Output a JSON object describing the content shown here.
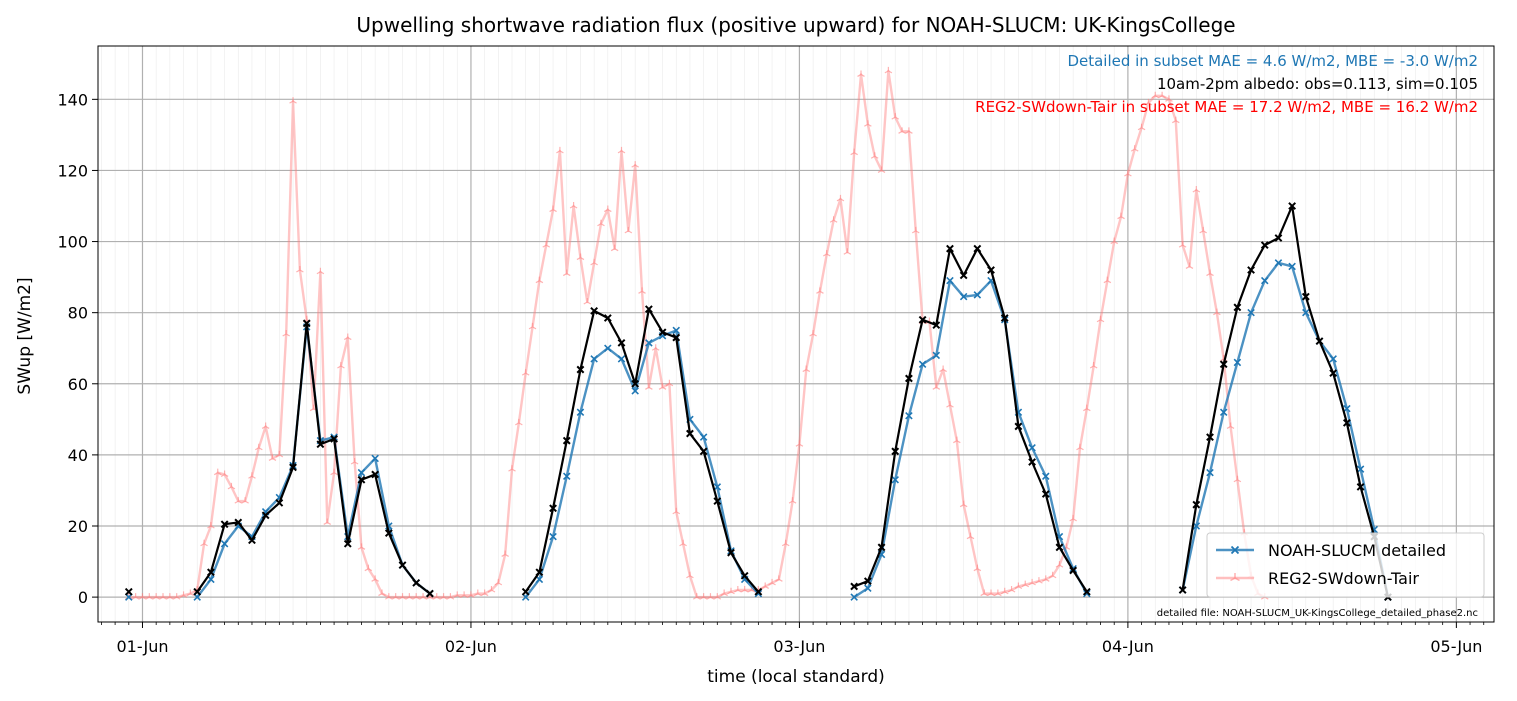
{
  "chart_data": {
    "type": "line",
    "title": "Upwelling shortwave radiation flux (positive upward) for NOAH-SLUCM: UK-KingsCollege",
    "xlabel": "time (local standard)",
    "ylabel": "SWup [W/m2]",
    "x_unit": "hours since 01-Jun 00:00",
    "xlim": [
      -3.25,
      98.75
    ],
    "ylim": [
      -7,
      155
    ],
    "x_ticks": [
      0,
      24,
      48,
      72,
      96
    ],
    "x_tick_labels": [
      "01-Jun",
      "02-Jun",
      "03-Jun",
      "04-Jun",
      "05-Jun"
    ],
    "y_ticks": [
      0,
      20,
      40,
      60,
      80,
      100,
      120,
      140
    ],
    "y_tick_labels": [
      "0",
      "20",
      "40",
      "60",
      "80",
      "100",
      "120",
      "140"
    ],
    "grid": true,
    "legend_position": "lower right",
    "annotations": [
      {
        "text": "Detailed in subset MAE = 4.6 W/m2, MBE = -3.0 W/m2",
        "color": "#1f77b4"
      },
      {
        "text": "10am-2pm albedo: obs=0.113, sim=0.105",
        "color": "#000000"
      },
      {
        "text": "REG2-SWdown-Tair in subset MAE = 17.2 W/m2, MBE = 16.2 W/m2",
        "color": "#ff0000"
      }
    ],
    "footnote": "detailed file: NOAH-SLUCM_UK-KingsCollege_detailed_phase2.nc",
    "series": [
      {
        "name": "NOAH-SLUCM detailed",
        "color": "#1f77b4",
        "in_legend": true,
        "points": [
          [
            -1,
            0
          ],
          [
            4,
            0
          ],
          [
            5,
            5
          ],
          [
            6,
            15
          ],
          [
            7,
            20
          ],
          [
            8,
            17
          ],
          [
            9,
            24
          ],
          [
            10,
            28
          ],
          [
            11,
            37
          ],
          [
            12,
            76
          ],
          [
            13,
            44
          ],
          [
            14,
            45
          ],
          [
            15,
            17
          ],
          [
            16,
            35
          ],
          [
            17,
            39
          ],
          [
            18,
            20
          ],
          [
            19,
            9
          ],
          [
            20,
            4
          ],
          [
            21,
            1
          ],
          [
            28,
            0
          ],
          [
            29,
            5
          ],
          [
            30,
            17
          ],
          [
            31,
            34
          ],
          [
            32,
            52
          ],
          [
            33,
            67
          ],
          [
            34,
            70
          ],
          [
            35,
            67
          ],
          [
            36,
            58
          ],
          [
            37,
            71.5
          ],
          [
            38,
            73.5
          ],
          [
            39,
            75
          ],
          [
            40,
            50
          ],
          [
            41,
            45
          ],
          [
            42,
            31
          ],
          [
            43,
            13
          ],
          [
            44,
            5
          ],
          [
            45,
            1
          ],
          [
            52,
            0
          ],
          [
            53,
            2.5
          ],
          [
            54,
            12
          ],
          [
            55,
            33
          ],
          [
            56,
            51
          ],
          [
            57,
            65.5
          ],
          [
            58,
            68
          ],
          [
            59,
            89
          ],
          [
            60,
            84.5
          ],
          [
            61,
            85
          ],
          [
            62,
            89
          ],
          [
            63,
            78
          ],
          [
            64,
            52
          ],
          [
            65,
            42
          ],
          [
            66,
            34
          ],
          [
            67,
            17
          ],
          [
            68,
            8
          ],
          [
            69,
            1
          ],
          [
            76,
            2
          ],
          [
            77,
            20
          ],
          [
            78,
            35
          ],
          [
            79,
            52
          ],
          [
            80,
            66
          ],
          [
            81,
            80
          ],
          [
            82,
            89
          ],
          [
            83,
            94
          ],
          [
            84,
            93
          ],
          [
            85,
            80
          ],
          [
            86,
            72
          ],
          [
            87,
            67
          ],
          [
            88,
            53
          ],
          [
            89,
            36
          ],
          [
            90,
            19
          ],
          [
            91,
            0
          ]
        ]
      },
      {
        "name": "REG2-SWdown-Tair",
        "color": "#ff7f7f",
        "in_legend": true,
        "points": [
          [
            -1,
            0
          ],
          [
            -0.5,
            0
          ],
          [
            0,
            0
          ],
          [
            0.5,
            0
          ],
          [
            1,
            0
          ],
          [
            1.5,
            0
          ],
          [
            2,
            0
          ],
          [
            2.5,
            0
          ],
          [
            3,
            0.5
          ],
          [
            3.5,
            1
          ],
          [
            4,
            2
          ],
          [
            4.5,
            15
          ],
          [
            5,
            20
          ],
          [
            5.5,
            35
          ],
          [
            6,
            34.5
          ],
          [
            6.5,
            31
          ],
          [
            7,
            27
          ],
          [
            7.5,
            27
          ],
          [
            8,
            34
          ],
          [
            8.5,
            42
          ],
          [
            9,
            48
          ],
          [
            9.5,
            39
          ],
          [
            10,
            40
          ],
          [
            10.5,
            74
          ],
          [
            11,
            139.5
          ],
          [
            11.5,
            92
          ],
          [
            12,
            78
          ],
          [
            12.5,
            53
          ],
          [
            13,
            91.5
          ],
          [
            13.5,
            21
          ],
          [
            14,
            35
          ],
          [
            14.5,
            65
          ],
          [
            15,
            73
          ],
          [
            15.5,
            38
          ],
          [
            16,
            14
          ],
          [
            16.5,
            8
          ],
          [
            17,
            5
          ],
          [
            17.5,
            1
          ],
          [
            18,
            0
          ],
          [
            18.5,
            0
          ],
          [
            19,
            0
          ],
          [
            19.5,
            0
          ],
          [
            20,
            0
          ],
          [
            20.5,
            0
          ],
          [
            21,
            0
          ],
          [
            21.5,
            0
          ],
          [
            22,
            0
          ],
          [
            22.5,
            0
          ],
          [
            23,
            0.5
          ],
          [
            23.5,
            0.5
          ],
          [
            24,
            0.5
          ],
          [
            24.5,
            1
          ],
          [
            25,
            1
          ],
          [
            25.5,
            2
          ],
          [
            26,
            4
          ],
          [
            26.5,
            12
          ],
          [
            27,
            36
          ],
          [
            27.5,
            49
          ],
          [
            28,
            63
          ],
          [
            28.5,
            76
          ],
          [
            29,
            89
          ],
          [
            29.5,
            99
          ],
          [
            30,
            109
          ],
          [
            30.5,
            125.5
          ],
          [
            31,
            91
          ],
          [
            31.5,
            110
          ],
          [
            32,
            95.5
          ],
          [
            32.5,
            83
          ],
          [
            33,
            94
          ],
          [
            33.5,
            105
          ],
          [
            34,
            109
          ],
          [
            34.5,
            98
          ],
          [
            35,
            125.5
          ],
          [
            35.5,
            103
          ],
          [
            36,
            121.5
          ],
          [
            36.5,
            86
          ],
          [
            37,
            59
          ],
          [
            37.5,
            70
          ],
          [
            38,
            59
          ],
          [
            38.5,
            60
          ],
          [
            39,
            24
          ],
          [
            39.5,
            15
          ],
          [
            40,
            6
          ],
          [
            40.5,
            0
          ],
          [
            41,
            0
          ],
          [
            41.5,
            0
          ],
          [
            42,
            0
          ],
          [
            42.5,
            1
          ],
          [
            43,
            1.5
          ],
          [
            43.5,
            2
          ],
          [
            44,
            2
          ],
          [
            44.5,
            2
          ],
          [
            45,
            2
          ],
          [
            45.5,
            3
          ],
          [
            46,
            4
          ],
          [
            46.5,
            5
          ],
          [
            47,
            15
          ],
          [
            47.5,
            27
          ],
          [
            48,
            43
          ],
          [
            48.5,
            64
          ],
          [
            49,
            74
          ],
          [
            49.5,
            86
          ],
          [
            50,
            96.5
          ],
          [
            50.5,
            106
          ],
          [
            51,
            112
          ],
          [
            51.5,
            97
          ],
          [
            52,
            125
          ],
          [
            52.5,
            147
          ],
          [
            53,
            133
          ],
          [
            53.5,
            124
          ],
          [
            54,
            120
          ],
          [
            54.5,
            148
          ],
          [
            55,
            135
          ],
          [
            55.5,
            131
          ],
          [
            56,
            131
          ],
          [
            56.5,
            103
          ],
          [
            57,
            77.5
          ],
          [
            57.5,
            77.5
          ],
          [
            58,
            59
          ],
          [
            58.5,
            64
          ],
          [
            59,
            54
          ],
          [
            59.5,
            44
          ],
          [
            60,
            26
          ],
          [
            60.5,
            17
          ],
          [
            61,
            8
          ],
          [
            61.5,
            1
          ],
          [
            62,
            1
          ],
          [
            62.5,
            1
          ],
          [
            63,
            1.5
          ],
          [
            63.5,
            2
          ],
          [
            64,
            3
          ],
          [
            64.5,
            3.5
          ],
          [
            65,
            4
          ],
          [
            65.5,
            4.5
          ],
          [
            66,
            5
          ],
          [
            66.5,
            6
          ],
          [
            67,
            9
          ],
          [
            67.5,
            14
          ],
          [
            68,
            22
          ],
          [
            68.5,
            42
          ],
          [
            69,
            53
          ],
          [
            69.5,
            65
          ],
          [
            70,
            78
          ],
          [
            70.5,
            89
          ],
          [
            71,
            100
          ],
          [
            71.5,
            107
          ],
          [
            72,
            119
          ],
          [
            72.5,
            126
          ],
          [
            73,
            132
          ],
          [
            73.5,
            139
          ],
          [
            74,
            141
          ],
          [
            74.5,
            141
          ],
          [
            75,
            140
          ],
          [
            75.5,
            134
          ],
          [
            76,
            99
          ],
          [
            76.5,
            93
          ],
          [
            77,
            114.5
          ],
          [
            77.5,
            103
          ],
          [
            78,
            91
          ],
          [
            78.5,
            80
          ],
          [
            79,
            67
          ],
          [
            79.5,
            48
          ],
          [
            80,
            33
          ],
          [
            80.5,
            18
          ],
          [
            81,
            6
          ],
          [
            81.5,
            1
          ],
          [
            82,
            0
          ]
        ]
      },
      {
        "name": "",
        "color": "#000000",
        "in_legend": false,
        "points": [
          [
            -1,
            1.5
          ],
          [
            4,
            1.5
          ],
          [
            5,
            7
          ],
          [
            6,
            20.5
          ],
          [
            7,
            21
          ],
          [
            8,
            16
          ],
          [
            9,
            23
          ],
          [
            10,
            26.5
          ],
          [
            11,
            36.5
          ],
          [
            12,
            77
          ],
          [
            13,
            43
          ],
          [
            14,
            44.5
          ],
          [
            15,
            15
          ],
          [
            16,
            33
          ],
          [
            17,
            34.5
          ],
          [
            18,
            18
          ],
          [
            19,
            9
          ],
          [
            20,
            4
          ],
          [
            21,
            1
          ],
          [
            28,
            1.5
          ],
          [
            29,
            7
          ],
          [
            30,
            25
          ],
          [
            31,
            44
          ],
          [
            32,
            64
          ],
          [
            33,
            80.5
          ],
          [
            34,
            78.5
          ],
          [
            35,
            71.5
          ],
          [
            36,
            60
          ],
          [
            37,
            81
          ],
          [
            38,
            74.5
          ],
          [
            39,
            73
          ],
          [
            40,
            46
          ],
          [
            41,
            41
          ],
          [
            42,
            27
          ],
          [
            43,
            12.5
          ],
          [
            44,
            6
          ],
          [
            45,
            1.5
          ],
          [
            52,
            3
          ],
          [
            53,
            4.5
          ],
          [
            54,
            14
          ],
          [
            55,
            41
          ],
          [
            56,
            61.5
          ],
          [
            57,
            78
          ],
          [
            58,
            76.5
          ],
          [
            59,
            98
          ],
          [
            60,
            90.5
          ],
          [
            61,
            98
          ],
          [
            62,
            92
          ],
          [
            63,
            78.5
          ],
          [
            64,
            48
          ],
          [
            65,
            38
          ],
          [
            66,
            29
          ],
          [
            67,
            14
          ],
          [
            68,
            7.5
          ],
          [
            69,
            1.5
          ],
          [
            76,
            2
          ],
          [
            77,
            26
          ],
          [
            78,
            45
          ],
          [
            79,
            65.5
          ],
          [
            80,
            81.5
          ],
          [
            81,
            92
          ],
          [
            82,
            99
          ],
          [
            83,
            101
          ],
          [
            84,
            110
          ],
          [
            85,
            84.5
          ],
          [
            86,
            72
          ],
          [
            87,
            63
          ],
          [
            88,
            49
          ],
          [
            89,
            31
          ],
          [
            90,
            17
          ],
          [
            91,
            0
          ]
        ]
      }
    ]
  }
}
